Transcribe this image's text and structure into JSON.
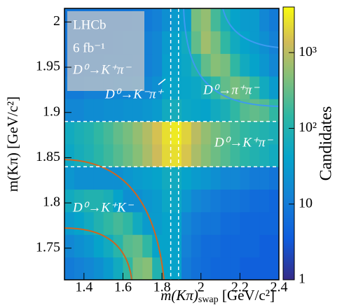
{
  "chart_data": {
    "type": "heatmap",
    "xlabel": {
      "main": "m(Kπ)",
      "sub": "swap",
      "unit": " [GeV/c²]"
    },
    "ylabel": "m(Kπ) [GeV/c²]",
    "colorbar_label": "Candidates",
    "annotations": [
      "LHCb",
      "6 fb⁻¹",
      "D⁰→K⁺π⁻",
      "D⁰→K⁻π⁺",
      "D⁰→π⁺π⁻",
      "D⁰→K⁺π⁻",
      "D⁰→K⁺K⁻"
    ],
    "xlim": [
      1.3,
      2.4
    ],
    "ylim": [
      1.715,
      2.015
    ],
    "zlim": [
      1,
      4000
    ],
    "zlog": true,
    "xticks": [
      1.4,
      1.6,
      1.8,
      2,
      2.2,
      2.4
    ],
    "yticks": [
      1.75,
      1.8,
      1.85,
      1.9,
      1.95,
      2
    ],
    "zticks": [
      1,
      10,
      {
        "value": 100,
        "label": "10²"
      },
      {
        "value": 1000,
        "label": "10³"
      }
    ],
    "vlines": [
      1.845,
      1.885
    ],
    "hlines": [
      1.84,
      1.89
    ],
    "xbins": [
      1.3,
      1.35,
      1.4,
      1.45,
      1.5,
      1.55,
      1.6,
      1.65,
      1.7,
      1.75,
      1.8,
      1.85,
      1.9,
      1.95,
      2.0,
      2.05,
      2.1,
      2.15,
      2.2,
      2.25,
      2.3,
      2.35,
      2.4
    ],
    "ybins": [
      1.715,
      1.74,
      1.765,
      1.79,
      1.815,
      1.84,
      1.865,
      1.89,
      1.915,
      1.94,
      1.965,
      1.99,
      2.015
    ],
    "z": [
      [
        10,
        12,
        15,
        20,
        30,
        60,
        150,
        400,
        500,
        100,
        40,
        40,
        10,
        7,
        6,
        5,
        5,
        5,
        4,
        4,
        4,
        4
      ],
      [
        15,
        20,
        25,
        40,
        60,
        120,
        250,
        300,
        150,
        40,
        40,
        40,
        12,
        8,
        6,
        6,
        5,
        5,
        5,
        5,
        4,
        4
      ],
      [
        30,
        40,
        60,
        100,
        150,
        200,
        150,
        60,
        30,
        30,
        40,
        40,
        15,
        10,
        8,
        8,
        6,
        6,
        5,
        5,
        5,
        5
      ],
      [
        60,
        80,
        100,
        100,
        80,
        40,
        20,
        20,
        25,
        30,
        50,
        50,
        25,
        15,
        12,
        10,
        8,
        8,
        7,
        6,
        6,
        5
      ],
      [
        25,
        20,
        20,
        20,
        20,
        20,
        25,
        30,
        35,
        40,
        60,
        60,
        40,
        30,
        25,
        20,
        15,
        15,
        12,
        10,
        10,
        8
      ],
      [
        50,
        70,
        90,
        130,
        180,
        250,
        350,
        500,
        800,
        1300,
        2200,
        2500,
        1600,
        800,
        500,
        350,
        250,
        180,
        130,
        100,
        80,
        60
      ],
      [
        60,
        80,
        100,
        150,
        200,
        300,
        400,
        600,
        900,
        1500,
        2500,
        3000,
        2000,
        1000,
        600,
        400,
        300,
        200,
        150,
        120,
        100,
        80
      ],
      [
        15,
        15,
        18,
        18,
        20,
        20,
        22,
        22,
        25,
        30,
        60,
        70,
        50,
        45,
        40,
        60,
        80,
        150,
        250,
        300,
        250,
        150
      ],
      [
        10,
        10,
        12,
        12,
        12,
        14,
        14,
        15,
        15,
        20,
        40,
        45,
        45,
        50,
        80,
        150,
        300,
        400,
        300,
        150,
        60,
        30
      ],
      [
        8,
        8,
        9,
        9,
        10,
        10,
        10,
        11,
        12,
        15,
        35,
        40,
        50,
        100,
        300,
        500,
        400,
        150,
        60,
        40,
        25,
        15
      ],
      [
        8,
        8,
        8,
        8,
        8,
        9,
        10,
        10,
        12,
        15,
        30,
        40,
        60,
        300,
        700,
        400,
        150,
        60,
        40,
        30,
        20,
        12
      ],
      [
        8,
        8,
        8,
        8,
        8,
        8,
        8,
        9,
        10,
        12,
        20,
        30,
        30,
        400,
        600,
        200,
        80,
        40,
        30,
        30,
        15,
        10
      ]
    ]
  }
}
